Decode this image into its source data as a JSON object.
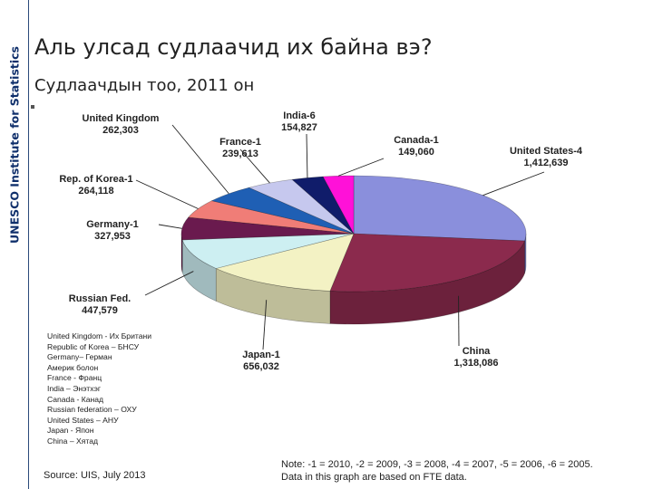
{
  "sidebar": {
    "label": "UNESCO Institute for Statistics"
  },
  "title": "Аль улсад судлаачид их байна вэ?",
  "subtitle": "Судлаачдын тоо, 2011 он",
  "chart_data": {
    "type": "pie",
    "slices": [
      {
        "label": "United States-4",
        "value_text": "1,412,639",
        "value": 1412639,
        "color": "#8a8fdc"
      },
      {
        "label": "China",
        "value_text": "1,318,086",
        "value": 1318086,
        "color": "#8b2a4d"
      },
      {
        "label": "Japan-1",
        "value_text": "656,032",
        "value": 656032,
        "color": "#f3f2c4"
      },
      {
        "label": "Russian Fed.",
        "value_text": "447,579",
        "value": 447579,
        "color": "#cdeff2"
      },
      {
        "label": "Germany-1",
        "value_text": "327,953",
        "value": 327953,
        "color": "#6a1a4e"
      },
      {
        "label": "Rep. of Korea-1",
        "value_text": "264,118",
        "value": 264118,
        "color": "#f07d77"
      },
      {
        "label": "United Kingdom",
        "value_text": "262,303",
        "value": 262303,
        "color": "#1f5fb4"
      },
      {
        "label": "France-1",
        "value_text": "239,613",
        "value": 239613,
        "color": "#c6c8ee"
      },
      {
        "label": "India-6",
        "value_text": "154,827",
        "value": 154827,
        "color": "#101c6a"
      },
      {
        "label": "Canada-1",
        "value_text": "149,060",
        "value": 149060,
        "color": "#ff11d8"
      }
    ]
  },
  "legend_lines": [
    "United Kingdom - Их Британи",
    "Republic of Korea – БНСУ",
    "Germany– Герман",
    "Америк болон",
    "France - Франц",
    "India – Энэтхэг",
    "Canada - Канад",
    "Russian federation – ОХУ",
    "United States – АНУ",
    "Japan - Япон",
    "China – Хятад"
  ],
  "source": "Source: UIS, July 2013",
  "note_lines": [
    "Note: -1 = 2010, -2 = 2009, -3 = 2008, -4 = 2007, -5 = 2006, -6 = 2005.",
    "Data in this graph are based on FTE data."
  ]
}
